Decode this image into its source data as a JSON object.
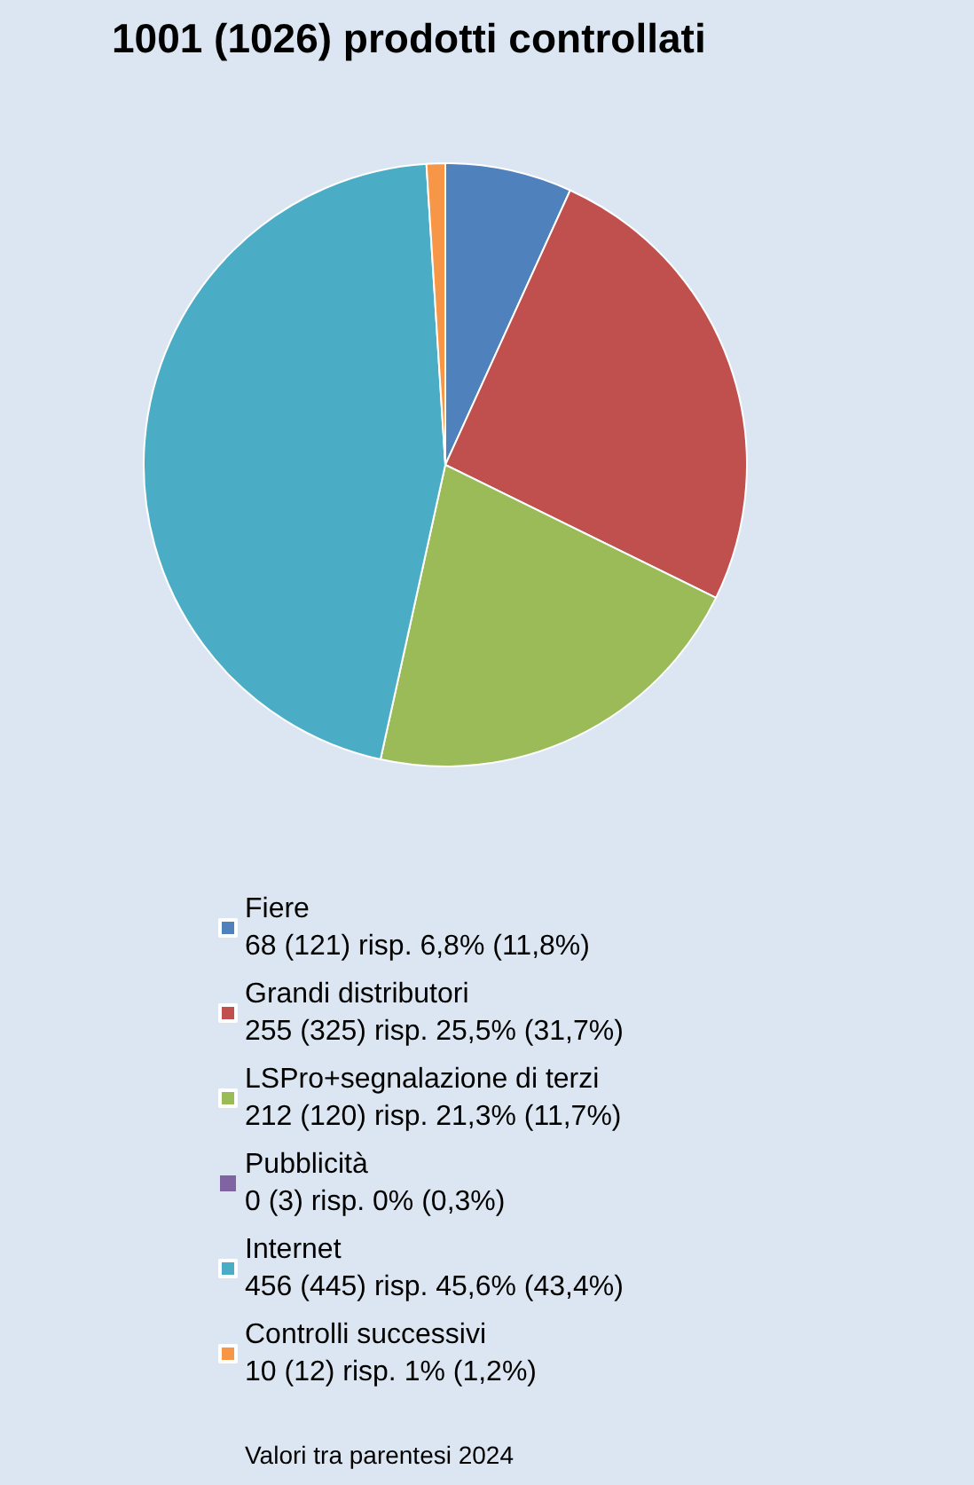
{
  "chart_data": {
    "type": "pie",
    "title": "1001 (1026) prodotti controllati",
    "categories": [
      "Fiere",
      "Grandi distributori",
      "LSPro+segnalazione di terzi",
      "Pubblicità",
      "Internet",
      "Controlli successivi"
    ],
    "values": [
      68,
      255,
      212,
      0,
      456,
      10
    ],
    "value_labels": [
      "68 (121) risp. 6,8% (11,8%)",
      "255 (325) risp. 25,5% (31,7%)",
      "212 (120) risp. 21,3% (11,7%)",
      "0 (3) risp. 0% (0,3%)",
      "456 (445) risp. 45,6% (43,4%)",
      "10 (12) risp. 1% (1,2%)"
    ],
    "colors": [
      "#4f81bd",
      "#c0504d",
      "#9bbb59",
      "#8064a2",
      "#4bacc6",
      "#f79646"
    ],
    "legend": "bottom",
    "annotations": [
      "Valori tra parentesi 2024"
    ]
  }
}
